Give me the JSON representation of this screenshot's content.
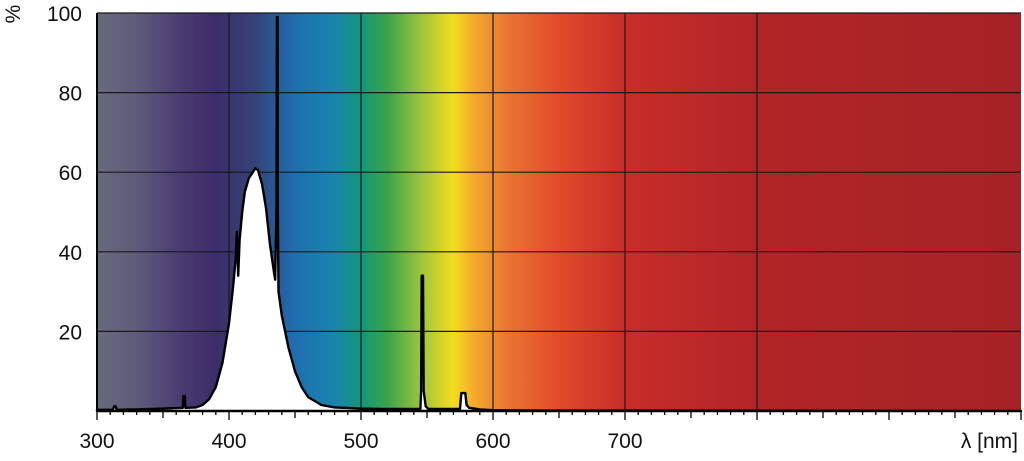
{
  "chart_data": {
    "type": "area",
    "title": "",
    "xlabel": "λ [nm]",
    "ylabel": "%",
    "xlim": [
      300,
      1000
    ],
    "ylim": [
      0,
      100
    ],
    "grid": true,
    "background": "visible-spectrum-gradient",
    "x_ticks": [
      300,
      400,
      500,
      600,
      700
    ],
    "y_ticks": [
      20,
      40,
      60,
      80,
      100
    ],
    "spectrum_colors": [
      {
        "nm": 300,
        "color": "#676a7e"
      },
      {
        "nm": 330,
        "color": "#5f5b7c"
      },
      {
        "nm": 365,
        "color": "#4a3a71"
      },
      {
        "nm": 390,
        "color": "#3c2c6a"
      },
      {
        "nm": 420,
        "color": "#354378"
      },
      {
        "nm": 450,
        "color": "#1e6fb0"
      },
      {
        "nm": 480,
        "color": "#1a84ad"
      },
      {
        "nm": 500,
        "color": "#14967a"
      },
      {
        "nm": 520,
        "color": "#3aa44a"
      },
      {
        "nm": 545,
        "color": "#9bc43e"
      },
      {
        "nm": 570,
        "color": "#f4dd1e"
      },
      {
        "nm": 585,
        "color": "#f4ab2c"
      },
      {
        "nm": 610,
        "color": "#ea7632"
      },
      {
        "nm": 650,
        "color": "#e24a2a"
      },
      {
        "nm": 700,
        "color": "#c82d29"
      },
      {
        "nm": 800,
        "color": "#b22527"
      },
      {
        "nm": 1000,
        "color": "#a62226"
      }
    ],
    "series": [
      {
        "color": "#000000",
        "fill": "#ffffff",
        "points": [
          [
            300,
            0.3
          ],
          [
            312,
            0.3
          ],
          [
            313,
            1.2
          ],
          [
            314,
            1.2
          ],
          [
            315,
            0.3
          ],
          [
            330,
            0.4
          ],
          [
            350,
            0.6
          ],
          [
            365,
            0.8
          ],
          [
            365.5,
            3.8
          ],
          [
            366.5,
            3.8
          ],
          [
            367,
            0.8
          ],
          [
            375,
            0.9
          ],
          [
            380,
            1.5
          ],
          [
            385,
            3
          ],
          [
            390,
            6
          ],
          [
            395,
            12
          ],
          [
            400,
            22
          ],
          [
            403,
            31
          ],
          [
            405,
            38
          ],
          [
            406,
            45
          ],
          [
            407,
            34
          ],
          [
            408,
            43
          ],
          [
            410,
            50
          ],
          [
            412,
            55
          ],
          [
            415,
            58.5
          ],
          [
            418,
            60
          ],
          [
            420,
            61
          ],
          [
            422,
            60.5
          ],
          [
            425,
            57
          ],
          [
            428,
            51
          ],
          [
            431,
            42
          ],
          [
            434,
            35
          ],
          [
            435,
            33
          ],
          [
            436,
            52
          ],
          [
            436.3,
            99
          ],
          [
            436.8,
            99
          ],
          [
            437,
            52
          ],
          [
            437.5,
            30
          ],
          [
            440,
            24
          ],
          [
            445,
            16
          ],
          [
            450,
            10
          ],
          [
            455,
            6
          ],
          [
            460,
            3.5
          ],
          [
            470,
            1.5
          ],
          [
            480,
            0.9
          ],
          [
            500,
            0.6
          ],
          [
            520,
            0.5
          ],
          [
            545,
            0.5
          ],
          [
            545.5,
            5
          ],
          [
            546,
            34
          ],
          [
            547,
            34
          ],
          [
            547.5,
            5
          ],
          [
            549,
            1.2
          ],
          [
            551,
            0.5
          ],
          [
            575,
            0.5
          ],
          [
            576,
            4.5
          ],
          [
            579,
            4.5
          ],
          [
            580,
            1.5
          ],
          [
            582,
            0.8
          ],
          [
            590,
            0.4
          ],
          [
            600,
            0.2
          ],
          [
            640,
            0.1
          ],
          [
            700,
            0.1
          ],
          [
            1000,
            0
          ]
        ]
      }
    ]
  }
}
